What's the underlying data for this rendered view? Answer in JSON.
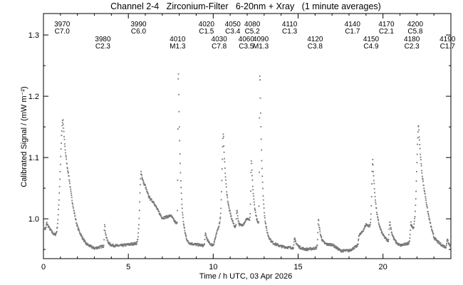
{
  "chart_data": {
    "type": "scatter",
    "title": "Channel 2-4   Zirconium-Filter   6-20nm + Xray   (1 minute averages)",
    "xlabel": "Time / h UTC, 03 Apr 2026",
    "ylabel": "Calibrated Signal / (mW m⁻²)",
    "xlim": [
      0,
      24
    ],
    "ylim": [
      0.935,
      1.335
    ],
    "x_ticks": [
      0,
      5,
      10,
      15,
      20
    ],
    "x_tick_labels": [
      "0",
      "5",
      "10",
      "15",
      "20"
    ],
    "y_ticks": [
      1.0,
      1.1,
      1.2,
      1.3
    ],
    "y_tick_labels": [
      "1.0",
      "1.1",
      "1.2",
      "1.3"
    ],
    "grid": false,
    "marker_color": "#777777",
    "flare_labels": [
      {
        "x": 1.1,
        "number": "3970",
        "class": "C7.0",
        "row": 0
      },
      {
        "x": 3.5,
        "number": "3980",
        "class": "C2.3",
        "row": 1
      },
      {
        "x": 5.6,
        "number": "3990",
        "class": "C6.0",
        "row": 0
      },
      {
        "x": 7.9,
        "number": "4010",
        "class": "M1.3",
        "row": 1
      },
      {
        "x": 9.6,
        "number": "4020",
        "class": "C1.5",
        "row": 0
      },
      {
        "x": 10.35,
        "number": "4030",
        "class": "C7.8",
        "row": 1
      },
      {
        "x": 11.15,
        "number": "4050",
        "class": "C3.4",
        "row": 0
      },
      {
        "x": 11.95,
        "number": "4060",
        "class": "C3.5",
        "row": 1
      },
      {
        "x": 12.3,
        "number": "4080",
        "class": "C5.2",
        "row": 0
      },
      {
        "x": 12.8,
        "number": "4090",
        "class": "M1.3",
        "row": 1
      },
      {
        "x": 14.5,
        "number": "4110",
        "class": "C1.3",
        "row": 0
      },
      {
        "x": 16.0,
        "number": "4120",
        "class": "C3.8",
        "row": 1
      },
      {
        "x": 18.2,
        "number": "4140",
        "class": "C1.7",
        "row": 0
      },
      {
        "x": 19.3,
        "number": "4150",
        "class": "C4.9",
        "row": 1
      },
      {
        "x": 20.2,
        "number": "4170",
        "class": "C2.1",
        "row": 0
      },
      {
        "x": 21.7,
        "number": "4180",
        "class": "C2.3",
        "row": 1
      },
      {
        "x": 21.9,
        "number": "4200",
        "class": "C5.8",
        "row": 0
      },
      {
        "x": 23.8,
        "number": "4190",
        "class": "C1.7",
        "row": 1
      }
    ],
    "background": {
      "x": [
        0.0,
        0.5,
        0.8,
        1.5,
        2.0,
        2.5,
        3.0,
        3.5,
        3.8,
        4.5,
        5.0,
        5.5,
        6.0,
        6.5,
        7.0,
        7.5,
        8.0,
        8.5,
        9.0,
        9.5,
        10.0,
        10.5,
        11.0,
        11.5,
        12.0,
        12.5,
        13.0,
        13.5,
        14.0,
        14.5,
        15.0,
        15.5,
        16.0,
        16.5,
        17.0,
        17.5,
        18.0,
        18.5,
        19.0,
        19.5,
        20.0,
        20.5,
        21.0,
        21.5,
        22.0,
        22.5,
        23.0,
        23.5,
        24.0
      ],
      "y": [
        0.985,
        0.975,
        0.968,
        1.005,
        0.972,
        0.956,
        0.951,
        0.955,
        0.956,
        0.956,
        0.958,
        0.96,
        1.015,
        1.02,
        1.0,
        1.005,
        0.985,
        0.96,
        0.958,
        0.956,
        0.956,
        1.005,
        0.995,
        0.975,
        1.0,
        0.99,
        0.97,
        0.96,
        0.955,
        0.953,
        0.952,
        0.95,
        0.952,
        0.956,
        0.958,
        0.948,
        0.948,
        0.956,
        0.99,
        0.985,
        0.97,
        0.958,
        0.955,
        0.96,
        0.99,
        0.995,
        0.962,
        0.955,
        0.95
      ]
    },
    "peaks": [
      {
        "t": 0.2,
        "amp": 0.012,
        "rise": 0.05,
        "decay": 0.25
      },
      {
        "t": 1.15,
        "amp": 0.175,
        "rise": 0.22,
        "decay": 0.35
      },
      {
        "t": 3.6,
        "amp": 0.035,
        "rise": 0.03,
        "decay": 0.12
      },
      {
        "t": 5.75,
        "amp": 0.09,
        "rise": 0.1,
        "decay": 0.3
      },
      {
        "t": 7.95,
        "amp": 0.26,
        "rise": 0.04,
        "decay": 0.12
      },
      {
        "t": 9.55,
        "amp": 0.02,
        "rise": 0.05,
        "decay": 0.15
      },
      {
        "t": 10.6,
        "amp": 0.135,
        "rise": 0.1,
        "decay": 0.18
      },
      {
        "t": 11.4,
        "amp": 0.035,
        "rise": 0.05,
        "decay": 0.15
      },
      {
        "t": 12.25,
        "amp": 0.1,
        "rise": 0.05,
        "decay": 0.15
      },
      {
        "t": 12.75,
        "amp": 0.26,
        "rise": 0.04,
        "decay": 0.14
      },
      {
        "t": 14.8,
        "amp": 0.015,
        "rise": 0.05,
        "decay": 0.15
      },
      {
        "t": 16.2,
        "amp": 0.045,
        "rise": 0.05,
        "decay": 0.15
      },
      {
        "t": 18.6,
        "amp": 0.012,
        "rise": 0.05,
        "decay": 0.15
      },
      {
        "t": 19.4,
        "amp": 0.11,
        "rise": 0.08,
        "decay": 0.18
      },
      {
        "t": 20.4,
        "amp": 0.035,
        "rise": 0.05,
        "decay": 0.2
      },
      {
        "t": 21.65,
        "amp": 0.025,
        "rise": 0.05,
        "decay": 0.1
      },
      {
        "t": 22.1,
        "amp": 0.16,
        "rise": 0.15,
        "decay": 0.3
      },
      {
        "t": 23.8,
        "amp": 0.015,
        "rise": 0.05,
        "decay": 0.15
      }
    ]
  }
}
